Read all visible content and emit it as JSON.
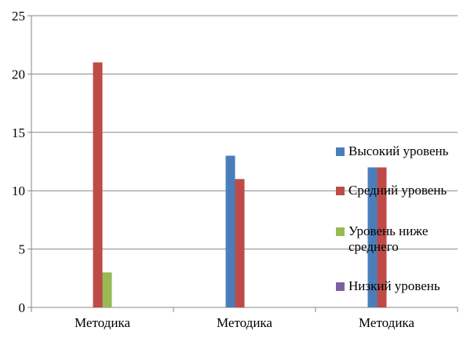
{
  "chart_data": {
    "type": "bar",
    "categories": [
      "Методика",
      "Методика",
      "Методика"
    ],
    "series": [
      {
        "name": "Высокий уровень",
        "color": "#4a7ebb",
        "values": [
          0,
          13,
          12
        ]
      },
      {
        "name": "Средний уровень",
        "color": "#be4b48",
        "values": [
          21,
          11,
          12
        ]
      },
      {
        "name": "Уровень ниже среднего",
        "color": "#98b954",
        "values": [
          3,
          0,
          0
        ]
      },
      {
        "name": "Низкий уровень",
        "color": "#7d60a0",
        "values": [
          0,
          0,
          0
        ]
      }
    ],
    "ylim": [
      0,
      25
    ],
    "yticks": [
      0,
      5,
      10,
      15,
      20,
      25
    ],
    "grid": true
  }
}
